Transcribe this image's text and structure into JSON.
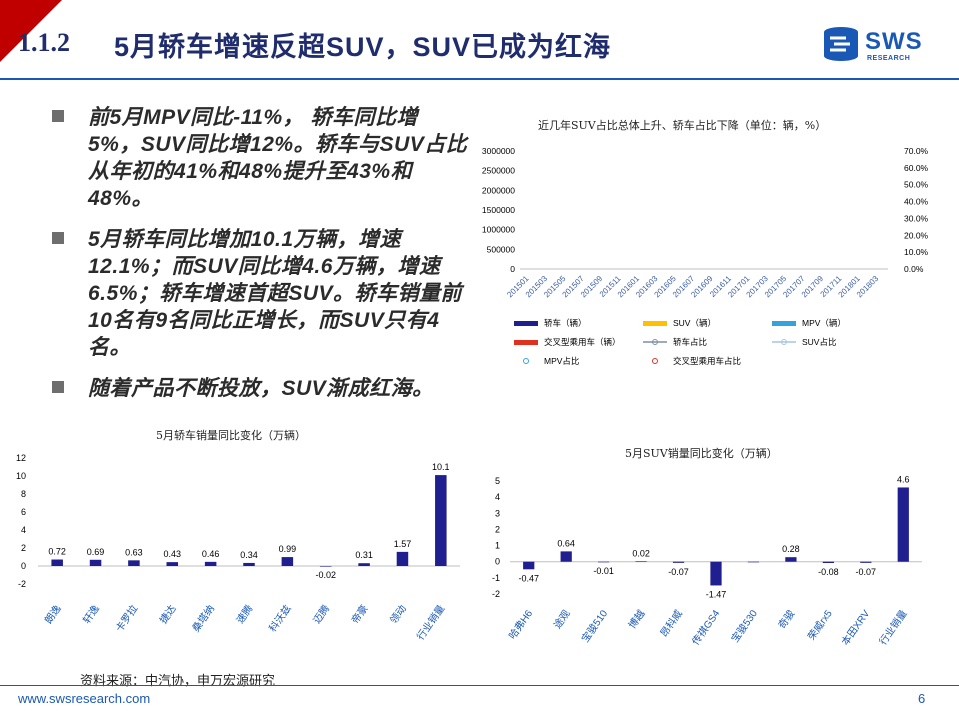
{
  "header": {
    "section_number": "1.1.2",
    "title": "5月轿车增速反超SUV，SUV已成为红海",
    "logo_text": "SWS",
    "logo_subtext": "RESEARCH"
  },
  "bullets": [
    {
      "text": "前5月MPV同比-11%， 轿车同比增5%，SUV同比增12%。轿车与SUV占比从年初的41%和48%提升至43%和48%。"
    },
    {
      "text": "5月轿车同比增加10.1万辆，增速12.1%；而SUV同比增4.6万辆，增速6.5%；轿车增速首超SUV。轿车销量前10名有9名同比正增长，而SUV只有4名。"
    },
    {
      "text": "随着产品不断投放，SUV渐成红海。"
    }
  ],
  "colors": {
    "accent_red": "#c00000",
    "brand_blue": "#1a58b5",
    "title_navy": "#1f2c6e",
    "bar_navy": "#1f1f8f",
    "suv_yellow": "#ffc000",
    "mpv_blue": "#33a3dc",
    "crossover_red": "#e0301e",
    "line_gray": "#7f8fa6",
    "suv_share_line": "#a9c4e0"
  },
  "chart_data": [
    {
      "type": "bar",
      "title": "近几年SUV占比总体上升、轿车占比下降（单位：辆，%）",
      "series": [
        {
          "name": "轿车（辆）",
          "type": "bar"
        },
        {
          "name": "SUV（辆）",
          "type": "bar"
        },
        {
          "name": "MPV（辆）",
          "type": "bar"
        },
        {
          "name": "交叉型乘用车（辆）",
          "type": "bar"
        },
        {
          "name": "轿车占比",
          "type": "line",
          "axis": "right"
        },
        {
          "name": "SUV占比",
          "type": "line",
          "axis": "right"
        },
        {
          "name": "MPV占比",
          "type": "line",
          "axis": "right"
        },
        {
          "name": "交叉型乘用车占比",
          "type": "line",
          "axis": "right"
        }
      ],
      "x_tick_labels": [
        "201501",
        "201503",
        "201505",
        "201507",
        "201509",
        "201511",
        "201601",
        "201603",
        "201605",
        "201607",
        "201609",
        "201611",
        "201701",
        "201703",
        "201705",
        "201707",
        "201709",
        "201711",
        "201801",
        "201803"
      ],
      "y_left_ticks": [
        "3000000",
        "2500000",
        "2000000",
        "1500000",
        "1000000",
        "500000",
        "0"
      ],
      "y_right_ticks": [
        "70.0%",
        "60.0%",
        "50.0%",
        "40.0%",
        "30.0%",
        "20.0%",
        "10.0%",
        "0.0%"
      ],
      "ylim_left": [
        0,
        3000000
      ],
      "ylim_right": [
        0,
        70
      ],
      "legend": "bottom"
    },
    {
      "type": "bar",
      "title": "5月轿车销量同比变化（万辆）",
      "categories": [
        "朗逸",
        "轩逸",
        "卡罗拉",
        "捷达",
        "桑塔纳",
        "速腾",
        "科沃兹",
        "迈腾",
        "帝豪",
        "领动",
        "行业销量"
      ],
      "values": [
        0.72,
        0.69,
        0.63,
        0.43,
        0.46,
        0.34,
        0.99,
        -0.02,
        0.31,
        1.57,
        10.1
      ],
      "value_labels": [
        "0.72",
        "0.69",
        "0.63",
        "0.43",
        "0.46",
        "0.34",
        "0.99",
        "-0.02",
        "0.31",
        "1.57",
        "10.1"
      ],
      "y_ticks": [
        "12",
        "10",
        "8",
        "6",
        "4",
        "2",
        "0",
        "-2"
      ],
      "ylim": [
        -2,
        12
      ]
    },
    {
      "type": "bar",
      "title": "5月SUV销量同比变化（万辆）",
      "categories": [
        "哈弗H6",
        "途观",
        "宝骏510",
        "博越",
        "昂科威",
        "传祺GS4",
        "宝骏530",
        "奇骏",
        "荣威rx5",
        "本田XRV",
        "行业销量"
      ],
      "values": [
        -0.47,
        0.64,
        -0.01,
        0.02,
        -0.07,
        -1.47,
        0,
        0.28,
        -0.08,
        -0.07,
        4.6
      ],
      "value_labels": [
        "-0.47",
        "0.64",
        "-0.01",
        "0.02",
        "-0.07",
        "-1.47",
        "",
        "0.28",
        "-0.08",
        "-0.07",
        "4.6"
      ],
      "y_ticks": [
        "5",
        "4",
        "3",
        "2",
        "1",
        "0",
        "-1",
        "-2"
      ],
      "ylim": [
        -2,
        5
      ]
    }
  ],
  "footer": {
    "source": "资料来源：中汽协，申万宏源研究",
    "url": "www.swsresearch.com",
    "page": "6"
  }
}
